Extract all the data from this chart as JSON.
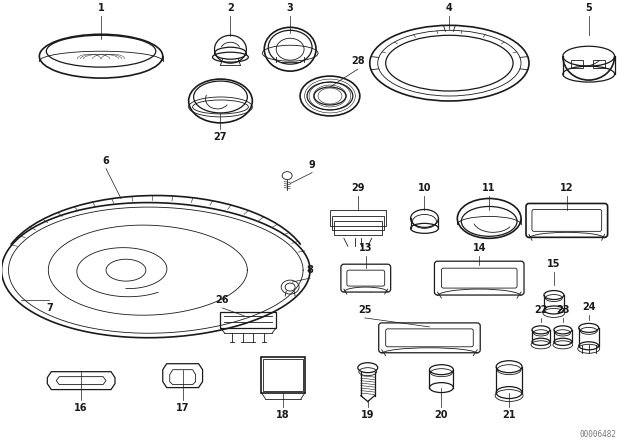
{
  "bg_color": "#ffffff",
  "line_color": "#1a1a1a",
  "watermark": "00006482",
  "fig_width": 6.4,
  "fig_height": 4.48,
  "dpi": 100
}
